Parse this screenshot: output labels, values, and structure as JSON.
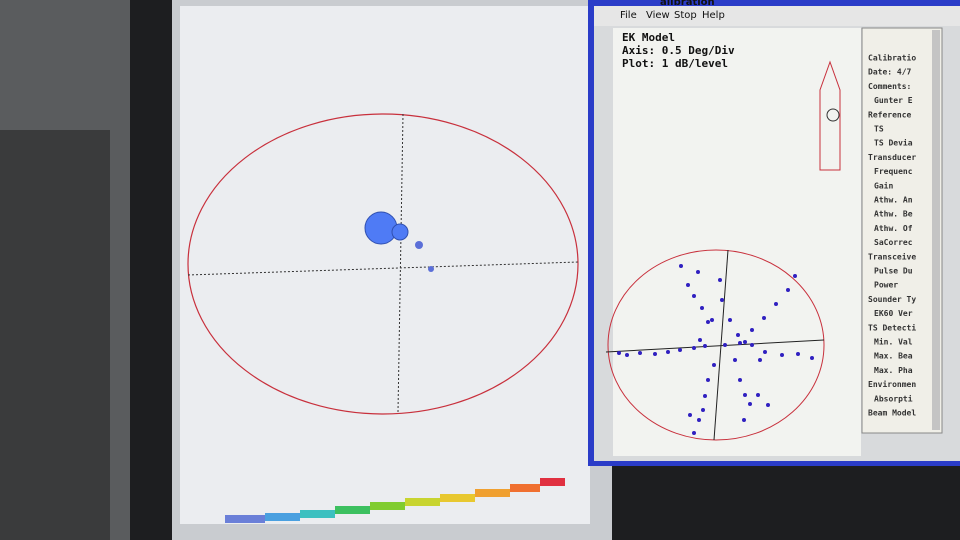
{
  "window": {
    "title": "alibration",
    "menu": [
      "File",
      "View",
      "Stop",
      "Help"
    ]
  },
  "plot": {
    "model": "EK Model",
    "axis": "Axis: 0.5 Deg/Div",
    "scale": "Plot: 1 dB/level"
  },
  "report": {
    "lines": [
      "Calibratio",
      "Date: 4/7",
      "Comments:",
      "Gunter E",
      "Reference",
      "TS",
      "TS Devia",
      "Transducer",
      "Frequenc",
      "Gain",
      "Athw. An",
      "Athw. Be",
      "Athw. Of",
      "SaCorrec",
      "Transceive",
      "Pulse Du",
      "Power",
      "Sounder Ty",
      "EK60 Ver",
      "TS Detecti",
      "Min. Val",
      "Max. Bea",
      "Max. Pha",
      "Environmen",
      "Absorpti",
      "Beam Model"
    ]
  }
}
